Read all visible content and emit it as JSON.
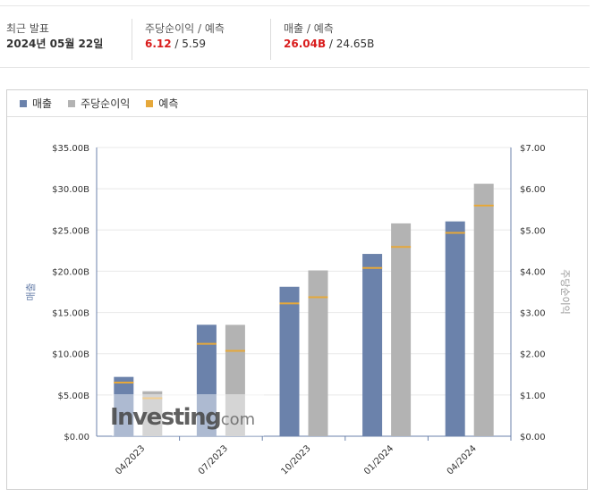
{
  "summary": {
    "release_label": "최근 발표",
    "release_date": "2024년 05월 22일",
    "eps_label": "주당순이익 / 예측",
    "eps_actual": "6.12",
    "eps_forecast": " / 5.59",
    "revenue_label": "매출 / 예측",
    "revenue_actual": "26.04B",
    "revenue_forecast": " / 24.65B"
  },
  "legend": {
    "revenue": "매출",
    "eps": "주당순이익",
    "forecast": "예측"
  },
  "colors": {
    "revenue": "#6b82ab",
    "eps": "#b3b3b3",
    "forecast": "#e6a83a",
    "axis": "#6b82ab"
  },
  "watermark": {
    "brand": "Investing",
    "suffix": ".com"
  },
  "chart_data": {
    "type": "bar",
    "categories": [
      "04/2023",
      "07/2023",
      "10/2023",
      "01/2024",
      "04/2024"
    ],
    "series": [
      {
        "name": "매출",
        "axis": "left",
        "values": [
          7.19,
          13.51,
          18.12,
          22.1,
          26.04
        ],
        "forecast": [
          6.5,
          11.2,
          16.1,
          20.4,
          24.65
        ]
      },
      {
        "name": "주당순이익",
        "axis": "right",
        "values": [
          1.09,
          2.7,
          4.02,
          5.16,
          6.12
        ],
        "forecast": [
          0.92,
          2.07,
          3.37,
          4.59,
          5.59
        ]
      }
    ],
    "ylabel_left": "매출",
    "ylabel_right": "주당순이익",
    "ylim_left": [
      0,
      35
    ],
    "ylim_right": [
      0,
      7
    ],
    "yticks_left": [
      "$0.00",
      "$5.00B",
      "$10.00B",
      "$15.00B",
      "$20.00B",
      "$25.00B",
      "$30.00B",
      "$35.00B"
    ],
    "yticks_right": [
      "$0.00",
      "$1.00",
      "$2.00",
      "$3.00",
      "$4.00",
      "$5.00",
      "$6.00",
      "$7.00"
    ],
    "grid": true
  }
}
